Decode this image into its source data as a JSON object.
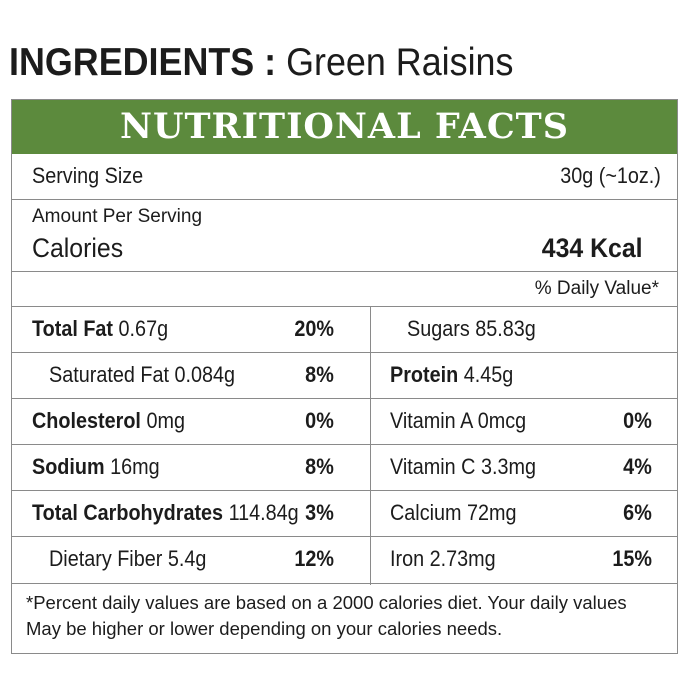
{
  "ingredients": {
    "label": "INGREDIENTS :",
    "value": "Green Raisins"
  },
  "title": "NUTRITIONAL FACTS",
  "serving": {
    "label": "Serving Size",
    "value": "30g (~1oz.)"
  },
  "amount_per_serving": "Amount Per Serving",
  "calories": {
    "label": "Calories",
    "value": "434 Kcal"
  },
  "daily_value_header": "% Daily Value*",
  "left_column": [
    {
      "name": "Total Fat",
      "amount": "0.67g",
      "dv": "20%",
      "bold_name": true,
      "indent": false
    },
    {
      "name": "Saturated Fat",
      "amount": "0.084g",
      "dv": "8%",
      "bold_name": false,
      "indent": true
    },
    {
      "name": "Cholesterol",
      "amount": "0mg",
      "dv": "0%",
      "bold_name": true,
      "indent": false
    },
    {
      "name": "Sodium",
      "amount": "16mg",
      "dv": "8%",
      "bold_name": true,
      "indent": false
    },
    {
      "name": "Total Carbohydrates",
      "amount": "114.84g",
      "dv": "3%",
      "bold_name": true,
      "indent": false
    },
    {
      "name": "Dietary Fiber",
      "amount": "5.4g",
      "dv": "12%",
      "bold_name": false,
      "indent": true
    }
  ],
  "right_column": [
    {
      "name": "Sugars",
      "amount": "85.83g",
      "dv": "",
      "bold_name": false,
      "indent": true
    },
    {
      "name": "Protein",
      "amount": "4.45g",
      "dv": "",
      "bold_name": true,
      "indent": false
    },
    {
      "name": "Vitamin A",
      "amount": "0mcg",
      "dv": "0%",
      "bold_name": false,
      "indent": false
    },
    {
      "name": "Vitamin C",
      "amount": "3.3mg",
      "dv": "4%",
      "bold_name": false,
      "indent": false
    },
    {
      "name": "Calcium",
      "amount": "72mg",
      "dv": "6%",
      "bold_name": false,
      "indent": false
    },
    {
      "name": "Iron",
      "amount": "2.73mg",
      "dv": "15%",
      "bold_name": false,
      "indent": false
    }
  ],
  "footnote": {
    "line1": "*Percent daily values are based on a 2000 calories diet. Your daily values",
    "line2": "May be higher or lower depending on your calories needs."
  },
  "colors": {
    "banner": "#5c8a3d",
    "text": "#1c1c1c",
    "rule": "#8a8a8a"
  }
}
